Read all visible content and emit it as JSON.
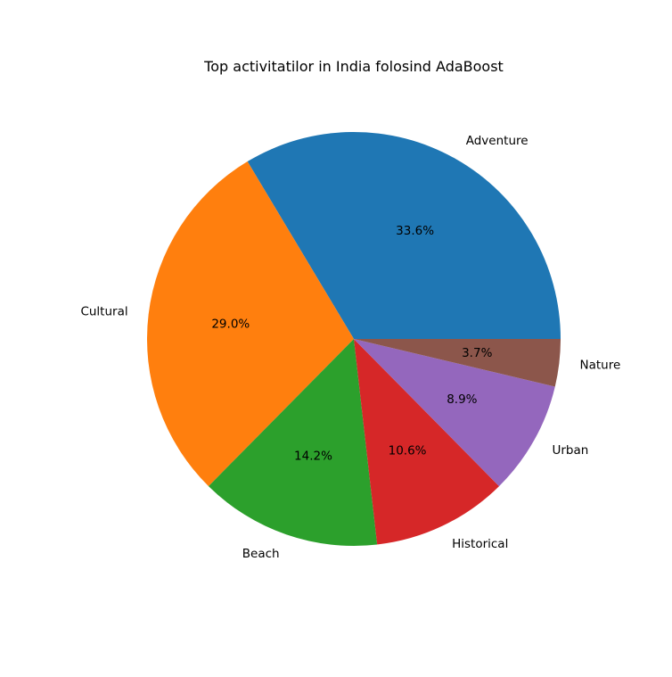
{
  "chart_data": {
    "type": "pie",
    "title": "Top activitatilor in India folosind AdaBoost",
    "slices": [
      {
        "label": "Adventure",
        "percent": 33.6,
        "percent_label": "33.6%",
        "color": "#1f77b4"
      },
      {
        "label": "Cultural",
        "percent": 29.0,
        "percent_label": "29.0%",
        "color": "#ff7f0e"
      },
      {
        "label": "Beach",
        "percent": 14.2,
        "percent_label": "14.2%",
        "color": "#2ca02c"
      },
      {
        "label": "Historical",
        "percent": 10.6,
        "percent_label": "10.6%",
        "color": "#d62728"
      },
      {
        "label": "Urban",
        "percent": 8.9,
        "percent_label": "8.9%",
        "color": "#9467bd"
      },
      {
        "label": "Nature",
        "percent": 3.7,
        "percent_label": "3.7%",
        "color": "#8c564b"
      }
    ],
    "start_angle_deg": 0,
    "direction": "counterclockwise",
    "legend": "none"
  }
}
